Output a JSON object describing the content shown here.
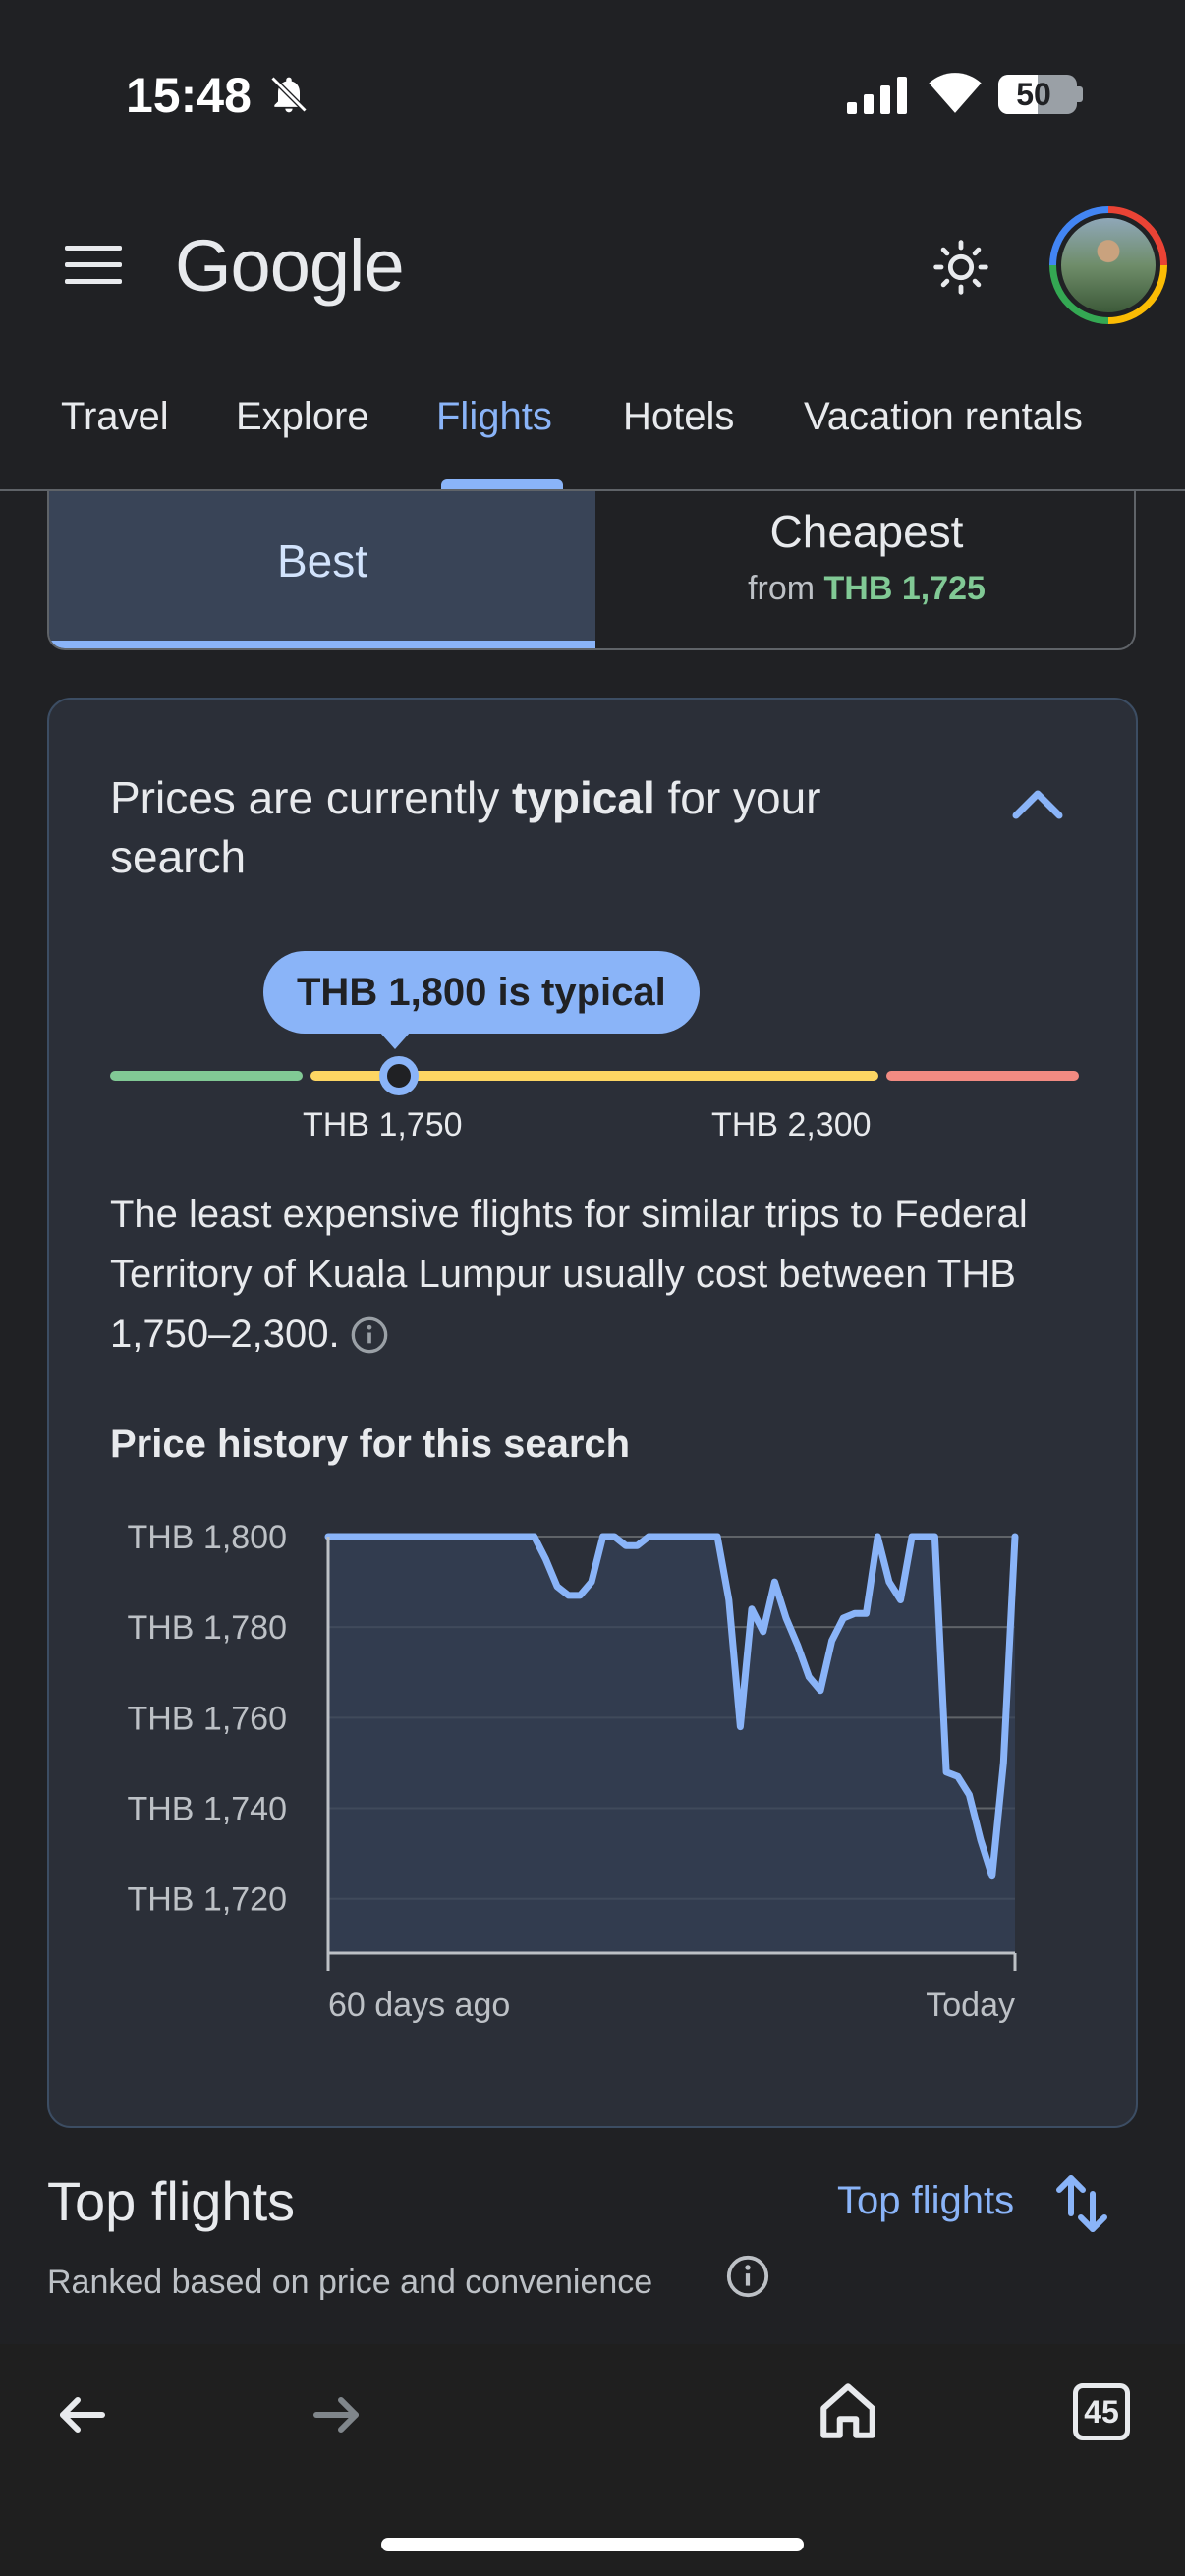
{
  "status": {
    "time": "15:48",
    "battery": "50",
    "battery_level": 0.5,
    "icons": [
      "bell-off-icon",
      "signal-icon",
      "wifi-icon",
      "battery-icon"
    ]
  },
  "header": {
    "logo": "Google",
    "tabs": [
      {
        "label": "Travel"
      },
      {
        "label": "Explore"
      },
      {
        "label": "Flights",
        "active": true
      },
      {
        "label": "Hotels"
      },
      {
        "label": "Vacation rentals"
      }
    ]
  },
  "sort": {
    "best": "Best",
    "cheapest": "Cheapest",
    "cheapest_from": "from",
    "cheapest_price": "THB 1,725"
  },
  "insight": {
    "title_prefix": "Prices are currently ",
    "title_bold": "typical",
    "title_suffix": " for your search",
    "bubble": "THB 1,800 is typical",
    "range_low": "THB 1,750",
    "range_high": "THB 2,300",
    "range_position": 0.09,
    "description": "The least expensive flights for similar trips to Federal Territory of Kuala Lumpur usually cost between THB 1,750–2,300.",
    "history_title": "Price history for this search"
  },
  "colors": {
    "accent": "#8ab4f8",
    "low": "#81c995",
    "typical": "#fdd663",
    "high": "#f28b82",
    "background": "#202124",
    "card": "#2b2f38"
  },
  "chart_data": {
    "type": "line",
    "x_start_label": "60 days ago",
    "x_end_label": "Today",
    "ylabels": [
      "THB 1,800",
      "THB 1,780",
      "THB 1,760",
      "THB 1,740",
      "THB 1,720"
    ],
    "yticks": [
      1800,
      1780,
      1760,
      1740,
      1720
    ],
    "ylim": [
      1708,
      1800
    ],
    "xlim": [
      0,
      60
    ],
    "grid": true,
    "series": [
      {
        "x": [
          0,
          18,
          19,
          20,
          21,
          22,
          23,
          24,
          25,
          26,
          27,
          28,
          34,
          35,
          36,
          37,
          38,
          39,
          40,
          41,
          42,
          43,
          44,
          45,
          46,
          47,
          48,
          49,
          50,
          51,
          52,
          53,
          54,
          55,
          56,
          57,
          58,
          59,
          60
        ],
        "y": [
          1800,
          1800,
          1795,
          1789,
          1787,
          1787,
          1790,
          1800,
          1800,
          1798,
          1798,
          1800,
          1800,
          1786,
          1758,
          1784,
          1779,
          1790,
          1782,
          1776,
          1769,
          1766,
          1777,
          1782,
          1783,
          1783,
          1800,
          1790,
          1786,
          1800,
          1800,
          1800,
          1748,
          1747,
          1743,
          1733,
          1725,
          1750,
          1800
        ]
      }
    ]
  },
  "top_flights": {
    "title": "Top flights",
    "subtitle": "Ranked based on price and convenience",
    "sort_label": "Top flights"
  },
  "browser": {
    "tabs_count": "45"
  }
}
